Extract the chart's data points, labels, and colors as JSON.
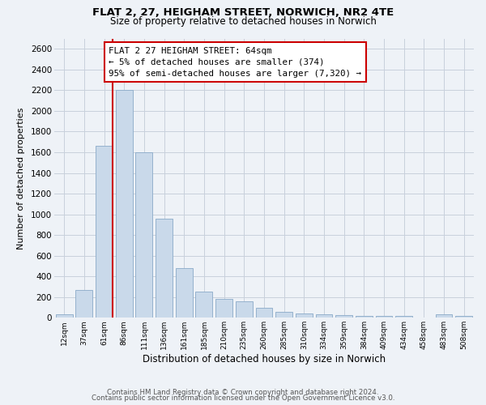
{
  "title": "FLAT 2, 27, HEIGHAM STREET, NORWICH, NR2 4TE",
  "subtitle": "Size of property relative to detached houses in Norwich",
  "xlabel": "Distribution of detached houses by size in Norwich",
  "ylabel": "Number of detached properties",
  "bar_color": "#c9d9ea",
  "bar_edgecolor": "#8aaac8",
  "annotation_box_text": "FLAT 2 27 HEIGHAM STREET: 64sqm\n← 5% of detached houses are smaller (374)\n95% of semi-detached houses are larger (7,320) →",
  "vline_color": "#cc0000",
  "categories": [
    "12sqm",
    "37sqm",
    "61sqm",
    "86sqm",
    "111sqm",
    "136sqm",
    "161sqm",
    "185sqm",
    "210sqm",
    "235sqm",
    "260sqm",
    "285sqm",
    "310sqm",
    "334sqm",
    "359sqm",
    "384sqm",
    "409sqm",
    "434sqm",
    "458sqm",
    "483sqm",
    "508sqm"
  ],
  "values": [
    30,
    270,
    1660,
    2200,
    1600,
    960,
    480,
    250,
    185,
    155,
    95,
    55,
    40,
    30,
    25,
    20,
    20,
    15,
    5,
    30,
    15
  ],
  "ylim": [
    0,
    2700
  ],
  "yticks": [
    0,
    200,
    400,
    600,
    800,
    1000,
    1200,
    1400,
    1600,
    1800,
    2000,
    2200,
    2400,
    2600
  ],
  "footer_line1": "Contains HM Land Registry data © Crown copyright and database right 2024.",
  "footer_line2": "Contains public sector information licensed under the Open Government Licence v3.0.",
  "bg_color": "#eef2f7",
  "grid_color": "#c8d0dc",
  "vline_bar_index": 2
}
